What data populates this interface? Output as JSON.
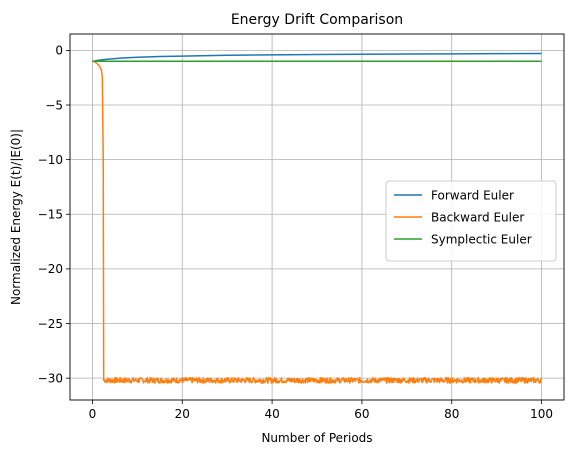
{
  "chart_data": {
    "type": "line",
    "title": "Energy Drift Comparison",
    "xlabel": "Number of Periods",
    "ylabel": "Normalized Energy E(t)/|E(0)|",
    "xlim": [
      -5,
      105
    ],
    "ylim": [
      -32,
      1.5
    ],
    "xticks": [
      0,
      20,
      40,
      60,
      80,
      100
    ],
    "yticks": [
      0,
      -5,
      -10,
      -15,
      -20,
      -25,
      -30
    ],
    "grid": true,
    "legend_position": "center-right",
    "series": [
      {
        "name": "Forward Euler",
        "color": "#1f77b4",
        "x": [
          0,
          1,
          2,
          3,
          5,
          7,
          10,
          15,
          20,
          30,
          40,
          50,
          60,
          70,
          80,
          90,
          100
        ],
        "y": [
          -1.0,
          -0.93,
          -0.87,
          -0.82,
          -0.75,
          -0.69,
          -0.63,
          -0.56,
          -0.52,
          -0.45,
          -0.41,
          -0.38,
          -0.35,
          -0.33,
          -0.32,
          -0.3,
          -0.29
        ]
      },
      {
        "name": "Backward Euler",
        "color": "#ff7f0e",
        "x": [
          0,
          0.5,
          1.0,
          1.5,
          2.0,
          2.2,
          2.4,
          2.45,
          2.5,
          2.55,
          100
        ],
        "y": [
          -1.0,
          -1.05,
          -1.2,
          -1.4,
          -1.8,
          -2.5,
          -10.0,
          -20.0,
          -30.2,
          -30.2,
          -30.2
        ],
        "noise_amplitude": 0.25,
        "noise_after_x": 2.6
      },
      {
        "name": "Symplectic Euler",
        "color": "#2ca02c",
        "x": [
          0,
          100
        ],
        "y": [
          -1.0,
          -1.0
        ]
      }
    ]
  }
}
